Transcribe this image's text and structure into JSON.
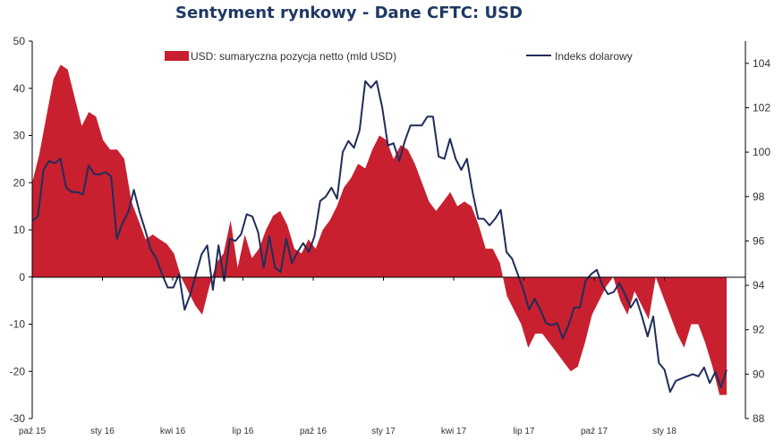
{
  "chart_data": {
    "type": "area+line",
    "title": "Sentyment rynkowy - Dane CFTC:  USD",
    "legend_placement": "top",
    "grid": false,
    "colors": {
      "area": "#c8202f",
      "line": "#1f2d5c"
    },
    "x_labels": [
      "paź 15",
      "sty 16",
      "kwi 16",
      "lip 16",
      "paź 16",
      "sty 17",
      "kwi 17",
      "lip 17",
      "paź 17",
      "sty 18"
    ],
    "left_axis": {
      "ylim": [
        -30,
        50
      ],
      "ticks": [
        "50",
        "40",
        "30",
        "20",
        "10",
        "0",
        "-10",
        "-20",
        "-30"
      ]
    },
    "right_axis": {
      "ylim": [
        88,
        105
      ],
      "ticks": [
        "104",
        "102",
        "100",
        "98",
        "96",
        "94",
        "92",
        "90",
        "88"
      ]
    },
    "series": [
      {
        "name": "USD: sumaryczna pozycja netto (mld USD)",
        "axis": "left",
        "type": "area",
        "values": [
          20,
          26,
          34,
          42,
          45,
          44,
          38,
          32,
          35,
          34,
          29,
          27,
          27,
          25,
          16,
          12,
          8,
          9,
          8,
          7,
          5,
          0,
          -3,
          -6,
          -8,
          -2,
          3,
          5,
          12,
          2,
          9,
          4,
          6,
          10,
          13,
          14,
          11,
          6,
          5,
          8,
          6,
          10,
          12,
          15,
          19,
          21,
          24,
          23,
          27,
          30,
          29,
          25,
          28,
          27,
          24,
          20,
          16,
          14,
          16,
          18,
          15,
          16,
          15,
          11,
          6,
          6,
          3,
          -4,
          -7,
          -10,
          -15,
          -12,
          -12,
          -14,
          -16,
          -18,
          -20,
          -19,
          -14,
          -8,
          -5,
          -2,
          0,
          -5,
          -8,
          -3,
          -6,
          -9,
          0,
          -4,
          -8,
          -12,
          -15,
          -10,
          -10,
          -14,
          -19,
          -25,
          -25
        ]
      },
      {
        "name": "Indeks dolarowy",
        "axis": "right",
        "type": "line",
        "values": [
          96.9,
          97.1,
          99.2,
          99.6,
          99.5,
          99.7,
          98.4,
          98.2,
          98.2,
          98.1,
          99.4,
          99.0,
          99.0,
          99.1,
          98.9,
          96.1,
          96.8,
          97.3,
          98.3,
          97.3,
          96.5,
          95.6,
          95.2,
          94.5,
          93.9,
          93.9,
          94.5,
          92.9,
          93.6,
          94.5,
          95.4,
          95.8,
          93.8,
          95.8,
          94.2,
          96.1,
          96.0,
          96.3,
          97.2,
          97.1,
          96.4,
          94.8,
          96.2,
          94.8,
          94.6,
          96.1,
          95.0,
          95.5,
          95.9,
          95.5,
          96.2,
          97.8,
          98.0,
          98.4,
          97.9,
          100.0,
          100.5,
          100.2,
          101.0,
          103.2,
          102.9,
          103.2,
          102.0,
          100.3,
          100.4,
          99.6,
          100.5,
          101.2,
          101.2,
          101.2,
          101.6,
          101.6,
          99.8,
          99.7,
          100.6,
          99.7,
          99.2,
          99.7,
          98.2,
          97.0,
          97.0,
          96.7,
          97.0,
          97.4,
          95.5,
          95.2,
          94.5,
          93.8,
          92.9,
          93.4,
          92.9,
          92.3,
          92.2,
          92.3,
          91.6,
          92.2,
          93.0,
          93.0,
          94.2,
          94.5,
          94.7,
          94.0,
          93.6,
          93.7,
          94.1,
          93.6,
          93.0,
          93.4,
          92.6,
          91.7,
          92.6,
          90.5,
          90.2,
          89.2,
          89.7,
          89.8,
          89.9,
          90.0,
          89.9,
          90.3,
          89.6,
          90.1,
          89.4,
          90.2
        ]
      }
    ]
  }
}
